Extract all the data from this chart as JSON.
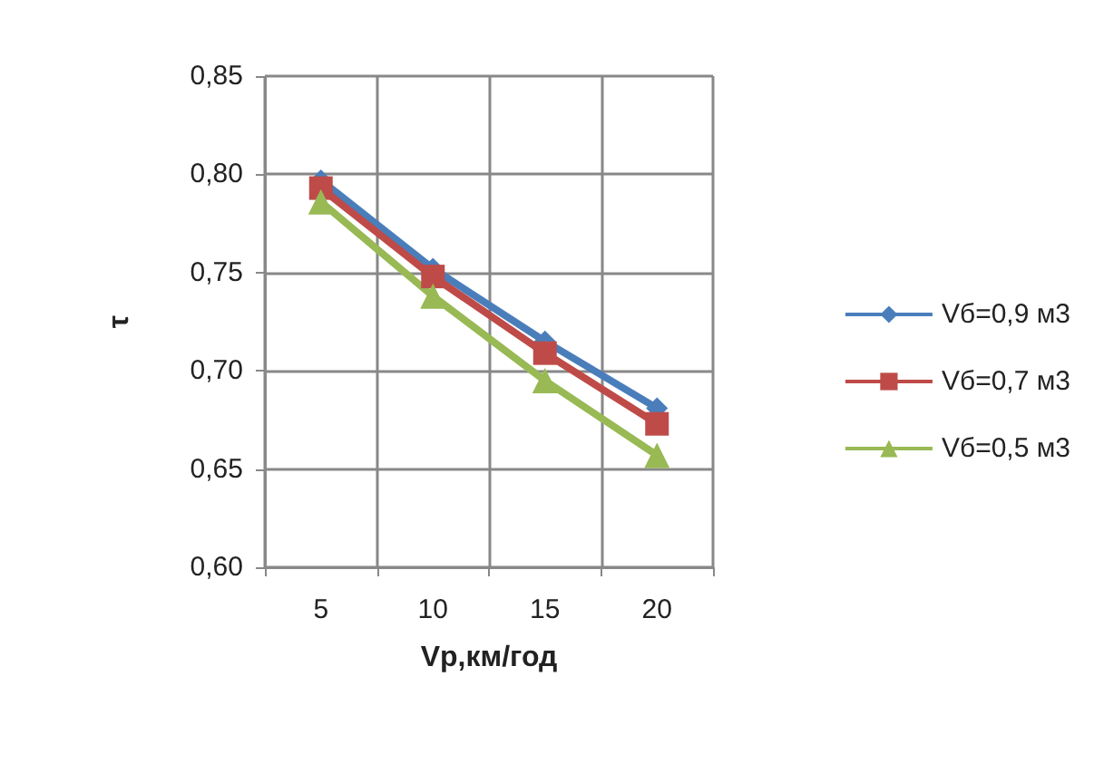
{
  "chart_data": {
    "type": "line",
    "xlabel": "Vp,км/год",
    "ylabel": "τ",
    "categories": [
      "5",
      "10",
      "15",
      "20"
    ],
    "series": [
      {
        "name": "Vб=0,9 м3",
        "color": "#4a7ebb",
        "marker": "diamond",
        "values": [
          0.797,
          0.752,
          0.715,
          0.681
        ]
      },
      {
        "name": "Vб=0,7 м3",
        "color": "#be4b48",
        "marker": "square",
        "values": [
          0.793,
          0.748,
          0.709,
          0.673
        ]
      },
      {
        "name": "Vб=0,5 м3",
        "color": "#98b954",
        "marker": "triangle",
        "values": [
          0.786,
          0.738,
          0.695,
          0.657
        ]
      }
    ],
    "ylim": [
      0.6,
      0.85
    ],
    "yticks": [
      {
        "value": 0.6,
        "label": "0,60"
      },
      {
        "value": 0.65,
        "label": "0,65"
      },
      {
        "value": 0.7,
        "label": "0,70"
      },
      {
        "value": 0.75,
        "label": "0,75"
      },
      {
        "value": 0.8,
        "label": "0,80"
      },
      {
        "value": 0.85,
        "label": "0,85"
      }
    ],
    "grid": true,
    "legend": "right"
  }
}
